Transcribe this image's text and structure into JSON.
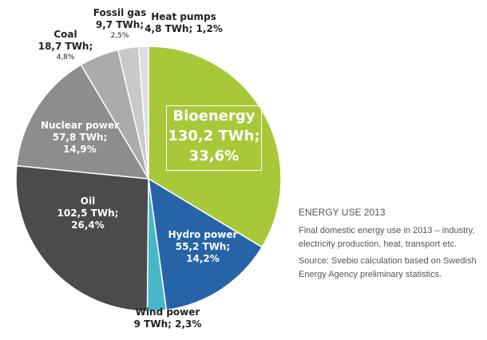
{
  "chart_data": {
    "type": "pie",
    "title": "ENERGY USE 2013",
    "unit": "TWh",
    "start": "12 o'clock, clockwise",
    "slices": [
      {
        "name": "Bioenergy",
        "value": 130.2,
        "percent": 33.6,
        "value_label": "130,2 TWh;",
        "pct_label": "33,6%",
        "color": "#a8c83a"
      },
      {
        "name": "Hydro power",
        "value": 55.2,
        "percent": 14.2,
        "value_label": "55,2 TWh;",
        "pct_label": "14,2%",
        "color": "#2763a7"
      },
      {
        "name": "Wind power",
        "value": 9,
        "percent": 2.3,
        "value_label": "9 TWh; 2,3%",
        "pct_label": "",
        "color": "#48b7ca"
      },
      {
        "name": "Oil",
        "value": 102.5,
        "percent": 26.4,
        "value_label": "102,5 TWh;",
        "pct_label": "26,4%",
        "color": "#4b4b4b"
      },
      {
        "name": "Nuclear power",
        "value": 57.8,
        "percent": 14.9,
        "value_label": "57,8 TWh;",
        "pct_label": "14,9%",
        "color": "#8d8d8d"
      },
      {
        "name": "Coal",
        "value": 18.7,
        "percent": 4.8,
        "value_label": "18,7 TWh;",
        "pct_label": "4,8%",
        "color": "#ababab"
      },
      {
        "name": "Fossil gas",
        "value": 9.7,
        "percent": 2.5,
        "value_label": "9,7 TWh;",
        "pct_label": "2,5%",
        "color": "#c9c9c9"
      },
      {
        "name": "Heat pumps",
        "value": 4.8,
        "percent": 1.2,
        "value_label": "4,8 TWh; 1,2%",
        "pct_label": "",
        "color": "#dddde2"
      }
    ]
  },
  "side": {
    "heading": "ENERGY USE 2013",
    "description": "Final domestic energy use in 2013 – industry, electricity production, heat, transport etc.",
    "source": "Source: Svebio calculation based on Swedish Energy Agency preliminary statistics."
  }
}
